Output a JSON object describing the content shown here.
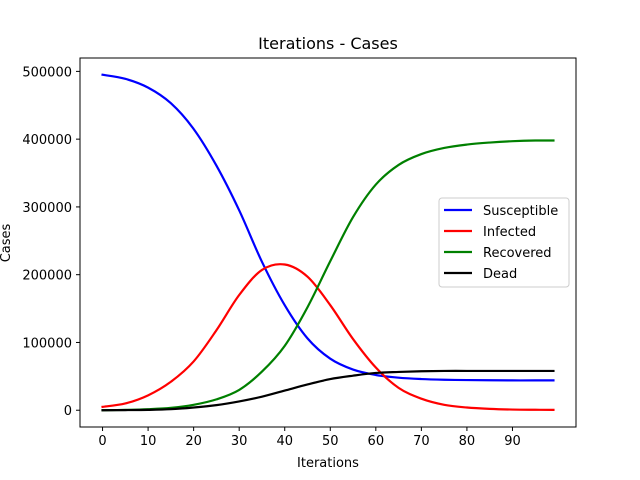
{
  "chart_data": {
    "type": "line",
    "title": "Iterations - Cases",
    "xlabel": "Iterations",
    "ylabel": "Cases",
    "xlim": [
      -4.95,
      103.95
    ],
    "ylim": [
      -24750,
      519750
    ],
    "xticks": [
      0,
      10,
      20,
      30,
      40,
      50,
      60,
      70,
      80,
      90
    ],
    "yticks": [
      0,
      100000,
      200000,
      300000,
      400000,
      500000
    ],
    "xtick_labels": [
      "0",
      "10",
      "20",
      "30",
      "40",
      "50",
      "60",
      "70",
      "80",
      "90"
    ],
    "ytick_labels": [
      "0",
      "100000",
      "200000",
      "300000",
      "400000",
      "500000"
    ],
    "grid": false,
    "legend_position": "center-right",
    "x": [
      0,
      5,
      10,
      15,
      20,
      25,
      30,
      35,
      40,
      45,
      50,
      55,
      60,
      65,
      70,
      75,
      80,
      85,
      90,
      95,
      99
    ],
    "series": [
      {
        "name": "Susceptible",
        "color": "#0000ff",
        "values": [
          495000,
          489000,
          476000,
          453000,
          415000,
          361000,
          295000,
          219000,
          155000,
          106000,
          76000,
          60000,
          52000,
          48000,
          46000,
          45000,
          44500,
          44200,
          44000,
          44000,
          44000
        ]
      },
      {
        "name": "Infected",
        "color": "#ff0000",
        "values": [
          5000,
          10000,
          22000,
          42000,
          72000,
          118000,
          170000,
          207000,
          215000,
          197000,
          155000,
          105000,
          63000,
          33000,
          17000,
          8000,
          4000,
          2000,
          1000,
          700,
          500
        ]
      },
      {
        "name": "Recovered",
        "color": "#008000",
        "values": [
          0,
          500,
          1500,
          3500,
          8000,
          16000,
          30000,
          57000,
          95000,
          152000,
          220000,
          285000,
          333000,
          362000,
          378000,
          387000,
          392000,
          395000,
          397000,
          398000,
          398000
        ]
      },
      {
        "name": "Dead",
        "color": "#000000",
        "values": [
          0,
          200,
          500,
          1500,
          4000,
          7500,
          13000,
          20000,
          29000,
          38000,
          46000,
          51000,
          55000,
          56500,
          57500,
          58000,
          58000,
          58000,
          58000,
          58000,
          58000
        ]
      }
    ]
  }
}
